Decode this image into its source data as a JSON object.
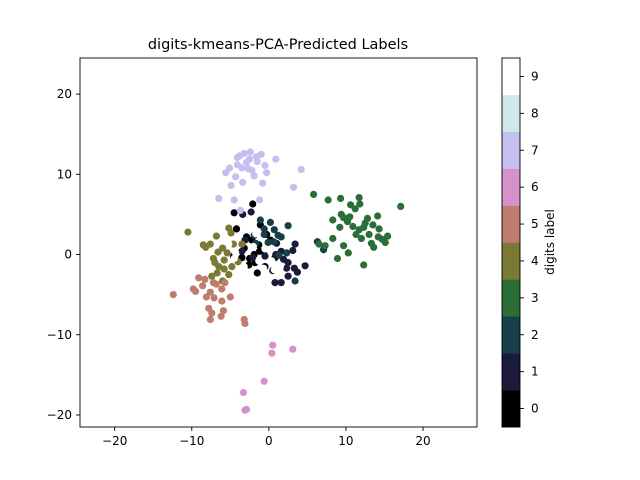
{
  "chart_data": {
    "type": "scatter",
    "title": "digits-kmeans-PCA-Predicted Labels",
    "xlabel": "",
    "ylabel": "",
    "xlim": [
      -24.5,
      27
    ],
    "ylim": [
      -21.5,
      24.5
    ],
    "xticks": [
      -20,
      -10,
      0,
      10,
      20
    ],
    "yticks": [
      -20,
      -10,
      0,
      10,
      20
    ],
    "grid": false,
    "colormap": "cubehelix",
    "colorbar": {
      "label": "digits label",
      "range": [
        -0.5,
        9.5
      ],
      "ticks": [
        0,
        1,
        2,
        3,
        4,
        5,
        6,
        7,
        8,
        9
      ],
      "colors": [
        "#000000",
        "#1c1a3a",
        "#163f48",
        "#2b6e38",
        "#7a7a35",
        "#c07c6d",
        "#d592c8",
        "#c3c0f0",
        "#cfe8ea",
        "#ffffff"
      ]
    },
    "series": [
      {
        "label": 0,
        "points": [
          [
            -0.3,
            2.5
          ],
          [
            -1.2,
            0.4
          ],
          [
            -2.5,
            -0.5
          ],
          [
            -1.8,
            -1
          ],
          [
            -2.2,
            1.8
          ],
          [
            -0.5,
            -1.5
          ],
          [
            -1.5,
            -2.3
          ],
          [
            -3.2,
            0.8
          ],
          [
            -4.2,
            3.2
          ],
          [
            -1.1,
            3.7
          ],
          [
            -2.1,
            6.3
          ],
          [
            -2.6,
            -1.3
          ],
          [
            0.8,
            -0.4
          ],
          [
            -3.5,
            -0.4
          ],
          [
            -1.3,
            1.2
          ],
          [
            -4.5,
            5.2
          ],
          [
            -0.7,
            0.4
          ],
          [
            -2.9,
            2.2
          ],
          [
            -1.9,
            0
          ],
          [
            0.2,
            1.8
          ]
        ]
      },
      {
        "label": 1,
        "points": [
          [
            0.5,
            -2
          ],
          [
            1.6,
            -3.5
          ],
          [
            2.5,
            -2.7
          ],
          [
            3.3,
            -1.7
          ],
          [
            4.7,
            -1.4
          ],
          [
            2.5,
            -1
          ],
          [
            1,
            1.4
          ],
          [
            3.4,
            1.3
          ],
          [
            0.8,
            -3.5
          ],
          [
            -0.5,
            -0.2
          ],
          [
            1.6,
            0.4
          ],
          [
            2.3,
            -1.7
          ],
          [
            3.7,
            -2.2
          ],
          [
            -3.4,
            5
          ],
          [
            -3.1,
            1.8
          ],
          [
            -3.5,
            0.4
          ],
          [
            -2.3,
            5.3
          ],
          [
            0.9,
            0
          ],
          [
            3.1,
            0.5
          ],
          [
            1.9,
            -0.6
          ],
          [
            -4.6,
            -0.2
          ],
          [
            -2.1,
            -0.4
          ]
        ]
      },
      {
        "label": 2,
        "points": [
          [
            -0.6,
            3.2
          ],
          [
            0.7,
            3.1
          ],
          [
            1.6,
            2.2
          ],
          [
            -0.1,
            1.5
          ],
          [
            0.2,
            4
          ],
          [
            1.2,
            2.4
          ],
          [
            -1.7,
            1.4
          ],
          [
            -1.1,
            4.3
          ],
          [
            2.3,
            0.2
          ],
          [
            3.4,
            -3.3
          ],
          [
            6.3,
            1.6
          ],
          [
            7.1,
            0.6
          ],
          [
            -0.6,
            2.5
          ],
          [
            1.3,
            -0.1
          ],
          [
            0.6,
            1.6
          ],
          [
            -1.9,
            2.4
          ],
          [
            2.5,
            3.6
          ]
        ]
      },
      {
        "label": 3,
        "points": [
          [
            5.8,
            7.5
          ],
          [
            7.7,
            6.8
          ],
          [
            8.3,
            4.3
          ],
          [
            9.3,
            7
          ],
          [
            9.2,
            3.4
          ],
          [
            10.5,
            4.7
          ],
          [
            11.3,
            2.5
          ],
          [
            12.3,
            3.4
          ],
          [
            13.3,
            1.4
          ],
          [
            14.2,
            2.2
          ],
          [
            15.4,
            2.3
          ],
          [
            14.1,
            4.8
          ],
          [
            17.1,
            6
          ],
          [
            11.8,
            6.3
          ],
          [
            10.6,
            6.2
          ],
          [
            8.3,
            2
          ],
          [
            9.7,
            1.1
          ],
          [
            10.3,
            0.2
          ],
          [
            12.3,
            -1.3
          ],
          [
            13.5,
            3.7
          ],
          [
            15.1,
            1.5
          ],
          [
            7.3,
            1.1
          ],
          [
            9.4,
            5
          ],
          [
            10.9,
            3.5
          ],
          [
            11.2,
            5.7
          ],
          [
            12.8,
            4.5
          ],
          [
            12,
            2
          ],
          [
            8.9,
            -0.5
          ],
          [
            11.7,
            7.1
          ],
          [
            14.7,
            1.9
          ],
          [
            13.6,
            0.9
          ],
          [
            10.2,
            4.1
          ],
          [
            12.5,
            3.9
          ],
          [
            14.3,
            3.2
          ],
          [
            9.7,
            4.6
          ],
          [
            11.7,
            3.1
          ],
          [
            13,
            2.5
          ],
          [
            6.5,
            1.3
          ]
        ]
      },
      {
        "label": 4,
        "points": [
          [
            -10.5,
            2.8
          ],
          [
            -8.5,
            1.2
          ],
          [
            -7.6,
            1.3
          ],
          [
            -6.8,
            2.3
          ],
          [
            -6,
            0.8
          ],
          [
            -5.4,
            0.2
          ],
          [
            -4.8,
            -1.5
          ],
          [
            -6.5,
            -1.5
          ],
          [
            -7.4,
            -2.7
          ],
          [
            -5.2,
            -2.5
          ],
          [
            -6,
            -3.3
          ],
          [
            -7.2,
            -0.5
          ],
          [
            -4.6,
            1.3
          ],
          [
            -5.2,
            3.3
          ],
          [
            -6.6,
            0.3
          ],
          [
            -5.8,
            -0.7
          ],
          [
            -3.5,
            1.3
          ],
          [
            -6.7,
            -2.3
          ],
          [
            -8.2,
            0.9
          ],
          [
            -4.9,
            2.7
          ],
          [
            -5.8,
            -1.8
          ],
          [
            -4,
            -0.9
          ],
          [
            -7,
            -1
          ]
        ]
      },
      {
        "label": 5,
        "points": [
          [
            -12.4,
            -5
          ],
          [
            -9.5,
            -4.6
          ],
          [
            -9.1,
            -2.9
          ],
          [
            -8.6,
            -3.9
          ],
          [
            -8.1,
            -5.3
          ],
          [
            -7.1,
            -5.4
          ],
          [
            -6.1,
            -4.3
          ],
          [
            -5,
            -5.3
          ],
          [
            -7.4,
            -7.3
          ],
          [
            -7.6,
            -8.1
          ],
          [
            -6.2,
            -7.7
          ],
          [
            -5.9,
            -7
          ],
          [
            -3.2,
            -8.1
          ],
          [
            -3.1,
            -8.6
          ],
          [
            -9.8,
            -4.3
          ],
          [
            -8.3,
            -3.1
          ],
          [
            -6.8,
            -3.7
          ],
          [
            -7.6,
            -4.7
          ],
          [
            -6.1,
            -5.8
          ],
          [
            -7.2,
            -3.5
          ],
          [
            -5.7,
            -3.5
          ],
          [
            -7.8,
            -6.7
          ]
        ]
      },
      {
        "label": 6,
        "points": [
          [
            0.5,
            -11.3
          ],
          [
            0.4,
            -12.3
          ],
          [
            3.1,
            -11.8
          ],
          [
            -0.6,
            -15.8
          ],
          [
            -3.3,
            -17.2
          ],
          [
            -2.9,
            -19.3
          ],
          [
            -3.1,
            -19.4
          ]
        ]
      },
      {
        "label": 7,
        "points": [
          [
            -3.2,
            12.6
          ],
          [
            -2.5,
            11.9
          ],
          [
            -1.6,
            12.2
          ],
          [
            -4.1,
            11.2
          ],
          [
            -3.5,
            10.8
          ],
          [
            -2.2,
            10.5
          ],
          [
            -0.5,
            11.1
          ],
          [
            -2.4,
            12.8
          ],
          [
            -1.5,
            11.6
          ],
          [
            0.9,
            11.9
          ],
          [
            4.2,
            10.6
          ],
          [
            -5.6,
            10.2
          ],
          [
            -4.3,
            9.7
          ],
          [
            -2.7,
            10.7
          ],
          [
            -3.4,
            9
          ],
          [
            -4.9,
            8.6
          ],
          [
            -6.5,
            7
          ],
          [
            -4.5,
            6.8
          ],
          [
            -1.2,
            6.8
          ],
          [
            -3.7,
            5.5
          ],
          [
            3.2,
            8.4
          ],
          [
            -0.8,
            8.9
          ],
          [
            -4.1,
            12.1
          ],
          [
            -1.9,
            9.8
          ],
          [
            -0.3,
            10.2
          ],
          [
            -5.1,
            10.8
          ],
          [
            -2.9,
            11.5
          ],
          [
            -3.8,
            12.3
          ],
          [
            -1,
            12.5
          ]
        ]
      },
      {
        "label": 9,
        "points": [
          [
            -1.3,
            -0.8
          ],
          [
            -0.7,
            -1.7
          ],
          [
            0.7,
            -1.9
          ],
          [
            -2,
            1
          ],
          [
            -0.5,
            0.7
          ],
          [
            0.4,
            -0.8
          ],
          [
            -3.2,
            -1.5
          ],
          [
            -3.9,
            -2
          ],
          [
            -2.7,
            3.7
          ],
          [
            -4.5,
            -0.5
          ],
          [
            -2.5,
            -2.2
          ],
          [
            -1.7,
            2.6
          ],
          [
            1.5,
            -1.5
          ],
          [
            -1.4,
            -3.2
          ],
          [
            -5.2,
            1.3
          ],
          [
            -4.3,
            0.2
          ]
        ]
      }
    ]
  }
}
